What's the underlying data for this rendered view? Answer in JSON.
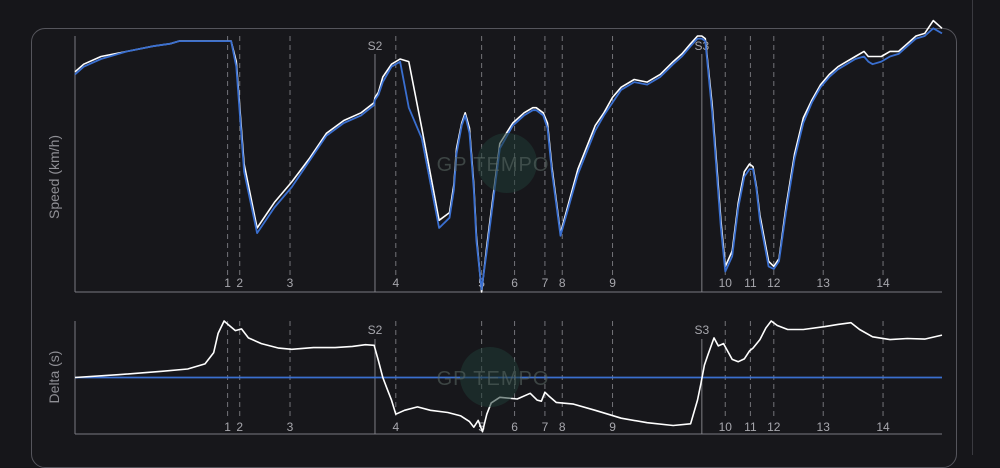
{
  "watermark": "GP TEMPO",
  "colors": {
    "background": "#16161a",
    "driver_a": "#ffffff",
    "driver_b": "#3a6fd0"
  },
  "chart_data": [
    {
      "type": "line",
      "ylabel": "Speed (km/h)",
      "xlim": [
        0,
        1000
      ],
      "ylim": [
        0,
        100
      ],
      "sectors": [
        {
          "label": "S2",
          "x": 346
        },
        {
          "label": "S3",
          "x": 723
        }
      ],
      "turns": [
        {
          "label": "1",
          "x": 176
        },
        {
          "label": "2",
          "x": 190
        },
        {
          "label": "3",
          "x": 248
        },
        {
          "label": "4",
          "x": 370
        },
        {
          "label": "5",
          "x": 469
        },
        {
          "label": "6",
          "x": 507
        },
        {
          "label": "7",
          "x": 542
        },
        {
          "label": "8",
          "x": 562
        },
        {
          "label": "9",
          "x": 620
        },
        {
          "label": "10",
          "x": 750
        },
        {
          "label": "11",
          "x": 779
        },
        {
          "label": "12",
          "x": 806
        },
        {
          "label": "13",
          "x": 863
        },
        {
          "label": "14",
          "x": 932
        }
      ],
      "series": [
        {
          "color": "#ffffff",
          "x": [
            0,
            10,
            30,
            60,
            90,
            110,
            120,
            128,
            131,
            138,
            155,
            170,
            180,
            186,
            195,
            210,
            230,
            250,
            270,
            290,
            310,
            330,
            345,
            346,
            350,
            355,
            365,
            375,
            385,
            400,
            420,
            432,
            437,
            440,
            446,
            450,
            455,
            460,
            463,
            469,
            475,
            490,
            505,
            518,
            528,
            532,
            540,
            545,
            550,
            560,
            580,
            600,
            610,
            620,
            630,
            645,
            660,
            675,
            690,
            700,
            710,
            718,
            723,
            727,
            735,
            745,
            750,
            758,
            765,
            772,
            778,
            782,
            786,
            790,
            800,
            806,
            812,
            820,
            830,
            840,
            850,
            860,
            870,
            880,
            890,
            900,
            910,
            915,
            920,
            930,
            940,
            950,
            960,
            970,
            980,
            990,
            1000
          ],
          "y": [
            86,
            89,
            92,
            94,
            96,
            97,
            98,
            98,
            98,
            98,
            98,
            98,
            98,
            90,
            50,
            25,
            35,
            43,
            52,
            62,
            67,
            70,
            74,
            76,
            78,
            84,
            89,
            91,
            90,
            64,
            28,
            31,
            42,
            56,
            66,
            70,
            64,
            42,
            22,
            0,
            18,
            58,
            66,
            70,
            72,
            72,
            70,
            66,
            49,
            23,
            48,
            65,
            70,
            76,
            80,
            83,
            82,
            85,
            90,
            93,
            97,
            100,
            100,
            99,
            73,
            28,
            10,
            16,
            35,
            47,
            50,
            49,
            41,
            30,
            12,
            10,
            13,
            33,
            54,
            68,
            75,
            81,
            85,
            88,
            90,
            92,
            94,
            92,
            92,
            92,
            94,
            94,
            97,
            100,
            101,
            106,
            103
          ]
        },
        {
          "color": "#3a6fd0",
          "x": [
            0,
            10,
            30,
            60,
            90,
            110,
            120,
            128,
            131,
            138,
            155,
            170,
            180,
            186,
            195,
            210,
            230,
            250,
            270,
            290,
            310,
            330,
            345,
            346,
            350,
            355,
            365,
            375,
            385,
            400,
            420,
            432,
            437,
            440,
            446,
            450,
            455,
            460,
            463,
            469,
            475,
            490,
            505,
            518,
            528,
            532,
            540,
            545,
            550,
            560,
            580,
            600,
            610,
            620,
            630,
            645,
            660,
            675,
            690,
            700,
            710,
            718,
            723,
            727,
            735,
            745,
            750,
            758,
            765,
            772,
            778,
            782,
            786,
            790,
            800,
            806,
            812,
            820,
            830,
            840,
            850,
            860,
            870,
            880,
            890,
            900,
            910,
            915,
            920,
            930,
            940,
            950,
            960,
            970,
            980,
            990,
            1000
          ],
          "y": [
            85,
            88,
            91,
            94,
            96,
            97,
            98,
            98,
            98,
            98,
            98,
            98,
            98,
            88,
            47,
            23,
            33,
            41,
            51,
            61,
            66,
            69,
            73,
            75,
            77,
            82,
            88,
            90,
            72,
            60,
            25,
            29,
            40,
            54,
            65,
            69,
            62,
            40,
            20,
            1,
            16,
            56,
            65,
            69,
            71,
            71,
            69,
            64,
            47,
            22,
            46,
            63,
            69,
            74,
            79,
            82,
            81,
            84,
            89,
            92,
            96,
            99,
            99,
            98,
            70,
            25,
            8,
            14,
            33,
            45,
            48,
            48,
            40,
            28,
            10,
            9,
            12,
            31,
            52,
            66,
            74,
            80,
            84,
            87,
            89,
            91,
            92,
            90,
            89,
            90,
            92,
            93,
            96,
            99,
            100,
            103,
            101
          ]
        }
      ]
    },
    {
      "type": "line",
      "ylabel": "Delta (s)",
      "xlim": [
        0,
        1000
      ],
      "ylim": [
        -1,
        1
      ],
      "reference_line": 0,
      "sectors": [
        {
          "label": "S2",
          "x": 346
        },
        {
          "label": "S3",
          "x": 723
        }
      ],
      "turns": [
        {
          "label": "1",
          "x": 176
        },
        {
          "label": "2",
          "x": 190
        },
        {
          "label": "3",
          "x": 248
        },
        {
          "label": "4",
          "x": 370
        },
        {
          "label": "5",
          "x": 469
        },
        {
          "label": "6",
          "x": 507
        },
        {
          "label": "7",
          "x": 542
        },
        {
          "label": "8",
          "x": 562
        },
        {
          "label": "9",
          "x": 620
        },
        {
          "label": "10",
          "x": 750
        },
        {
          "label": "11",
          "x": 779
        },
        {
          "label": "12",
          "x": 806
        },
        {
          "label": "13",
          "x": 863
        },
        {
          "label": "14",
          "x": 932
        }
      ],
      "series": [
        {
          "color": "#3a6fd0",
          "x": [
            0,
            1000
          ],
          "y": [
            0,
            0
          ]
        },
        {
          "color": "#ffffff",
          "x": [
            0,
            50,
            100,
            130,
            150,
            160,
            165,
            172,
            178,
            185,
            192,
            200,
            215,
            235,
            250,
            275,
            300,
            320,
            335,
            345,
            350,
            355,
            360,
            365,
            370,
            380,
            395,
            410,
            430,
            445,
            455,
            460,
            465,
            470,
            475,
            480,
            490,
            510,
            525,
            533,
            538,
            542,
            546,
            555,
            575,
            600,
            630,
            660,
            690,
            710,
            718,
            722,
            726,
            730,
            737,
            742,
            748,
            758,
            765,
            772,
            778,
            782,
            790,
            797,
            803,
            810,
            822,
            840,
            865,
            880,
            895,
            905,
            920,
            940,
            960,
            980,
            1000
          ],
          "y": [
            0,
            0.05,
            0.11,
            0.15,
            0.24,
            0.44,
            0.78,
            1.0,
            0.92,
            0.83,
            0.86,
            0.7,
            0.6,
            0.52,
            0.5,
            0.53,
            0.53,
            0.55,
            0.58,
            0.57,
            0.3,
            0,
            -0.2,
            -0.4,
            -0.65,
            -0.58,
            -0.52,
            -0.58,
            -0.62,
            -0.68,
            -0.78,
            -0.88,
            -0.76,
            -0.96,
            -0.65,
            -0.45,
            -0.35,
            -0.38,
            -0.28,
            -0.4,
            -0.42,
            -0.26,
            -0.32,
            -0.44,
            -0.47,
            -0.58,
            -0.72,
            -0.8,
            -0.85,
            -0.82,
            -0.4,
            -0.1,
            0.22,
            0.4,
            0.7,
            0.56,
            0.6,
            0.32,
            0.28,
            0.33,
            0.47,
            0.52,
            0.67,
            0.88,
            1.0,
            0.92,
            0.85,
            0.85,
            0.9,
            0.94,
            0.97,
            0.85,
            0.72,
            0.67,
            0.69,
            0.68,
            0.75
          ]
        }
      ]
    }
  ]
}
